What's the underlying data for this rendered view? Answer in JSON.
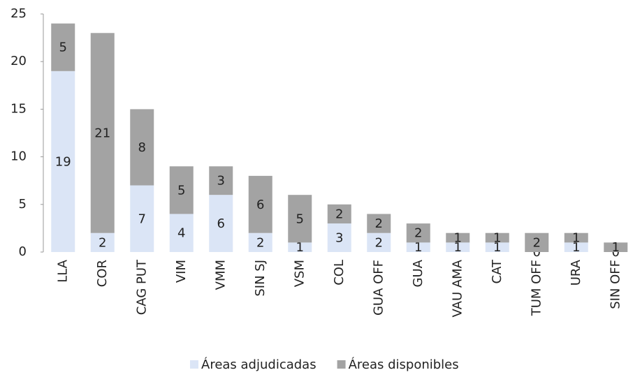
{
  "chart_data": {
    "type": "stacked_bar",
    "categories": [
      "LLA",
      "COR",
      "CAG PUT",
      "VIM",
      "VMM",
      "SIN SJ",
      "VSM",
      "COL",
      "GUA OFF",
      "GUA",
      "VAU AMA",
      "CAT",
      "TUM OFF",
      "URA",
      "SIN OFF"
    ],
    "series": [
      {
        "name": "Áreas adjudicadas",
        "color": "#dbe5f6",
        "values": [
          19,
          2,
          7,
          4,
          6,
          2,
          1,
          3,
          2,
          1,
          1,
          1,
          0,
          1,
          0
        ]
      },
      {
        "name": "Áreas disponibles",
        "color": "#a3a3a3",
        "values": [
          5,
          21,
          8,
          5,
          3,
          6,
          5,
          2,
          2,
          2,
          1,
          1,
          2,
          1,
          1
        ]
      }
    ],
    "ylim": [
      0,
      25
    ],
    "yticks": [
      0,
      5,
      10,
      15,
      20,
      25
    ],
    "grid": false,
    "legend": "bottom"
  }
}
